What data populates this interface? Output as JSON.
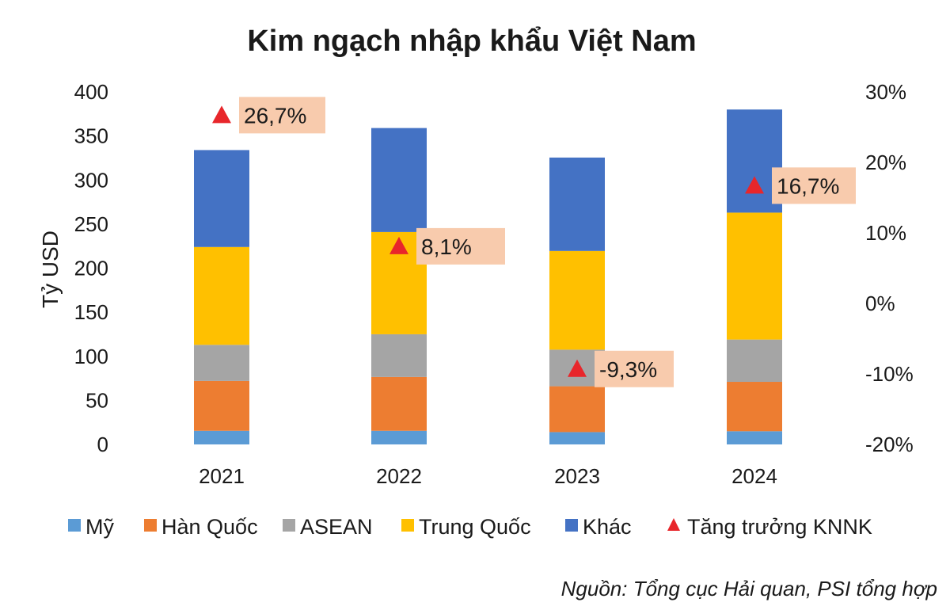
{
  "chart_data": {
    "type": "bar",
    "stacked": true,
    "title": "Kim ngạch nhập khẩu Việt Nam",
    "ylabel": "Tỷ USD",
    "categories": [
      "2021",
      "2022",
      "2023",
      "2024"
    ],
    "ylim": [
      0,
      400
    ],
    "yticks": [
      "0",
      "50",
      "100",
      "150",
      "200",
      "250",
      "300",
      "350",
      "400"
    ],
    "y2lim": [
      -20,
      30
    ],
    "y2ticks": [
      "-20%",
      "-10%",
      "0%",
      "10%",
      "20%",
      "30%"
    ],
    "series": [
      {
        "name": "Mỹ",
        "color": "#5B9BD5",
        "values": [
          15.5,
          15.5,
          14,
          15
        ]
      },
      {
        "name": "Hàn Quốc",
        "color": "#ED7D31",
        "values": [
          56.5,
          61,
          52,
          56
        ]
      },
      {
        "name": "ASEAN",
        "color": "#A5A5A5",
        "values": [
          41,
          48.5,
          41.5,
          48
        ]
      },
      {
        "name": "Trung Quốc",
        "color": "#FFC000",
        "values": [
          111,
          116,
          112,
          144
        ]
      },
      {
        "name": "Khác",
        "color": "#4472C4",
        "values": [
          110,
          118,
          106,
          117
        ]
      }
    ],
    "growth": {
      "name": "Tăng trưởng KNNK",
      "color": "#E8262B",
      "values": [
        26.7,
        8.1,
        -9.3,
        16.7
      ],
      "labels": [
        "26,7%",
        "8,1%",
        "-9,3%",
        "16,7%"
      ],
      "label_bg": "#F8CBAD"
    }
  },
  "source": "Nguồn: Tổng cục Hải quan, PSI tổng hợp"
}
